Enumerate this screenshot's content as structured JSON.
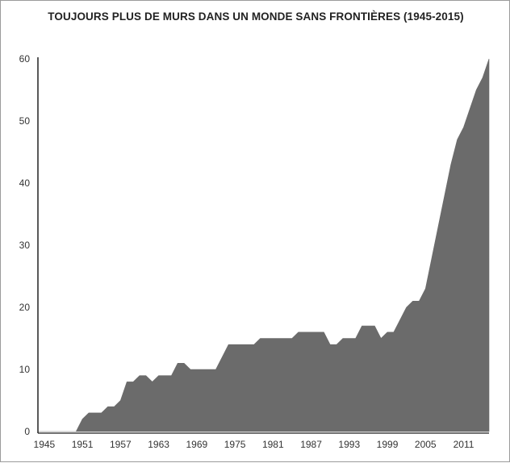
{
  "chart_data": {
    "type": "area",
    "title": "TOUJOURS PLUS DE MURS DANS UN MONDE SANS FRONTIÈRES (1945-2015)",
    "xlabel": "",
    "ylabel": "",
    "xlim": [
      1944,
      2015
    ],
    "ylim": [
      0,
      60
    ],
    "y_ticks": [
      0,
      10,
      20,
      30,
      40,
      50,
      60
    ],
    "x_ticks": [
      1945,
      1951,
      1957,
      1963,
      1969,
      1975,
      1981,
      1987,
      1993,
      1999,
      2005,
      2011
    ],
    "grid": false,
    "fill_color": "#6b6b6b",
    "series": [
      {
        "x": [
          1944,
          1945,
          1946,
          1947,
          1948,
          1949,
          1950,
          1951,
          1952,
          1953,
          1954,
          1955,
          1956,
          1957,
          1958,
          1959,
          1960,
          1961,
          1962,
          1963,
          1964,
          1965,
          1966,
          1967,
          1968,
          1969,
          1970,
          1971,
          1972,
          1973,
          1974,
          1975,
          1976,
          1977,
          1978,
          1979,
          1980,
          1981,
          1982,
          1983,
          1984,
          1985,
          1986,
          1987,
          1988,
          1989,
          1990,
          1991,
          1992,
          1993,
          1994,
          1995,
          1996,
          1997,
          1998,
          1999,
          2000,
          2001,
          2002,
          2003,
          2004,
          2005,
          2006,
          2007,
          2008,
          2009,
          2010,
          2011,
          2012,
          2013,
          2014,
          2015
        ],
        "values": [
          0,
          0,
          0,
          0,
          0,
          0,
          0,
          2,
          3,
          3,
          3,
          4,
          4,
          5,
          8,
          8,
          9,
          9,
          8,
          9,
          9,
          9,
          11,
          11,
          10,
          10,
          10,
          10,
          10,
          12,
          14,
          14,
          14,
          14,
          14,
          15,
          15,
          15,
          15,
          15,
          15,
          16,
          16,
          16,
          16,
          16,
          14,
          14,
          15,
          15,
          15,
          17,
          17,
          17,
          15,
          16,
          16,
          18,
          20,
          21,
          21,
          23,
          28,
          33,
          38,
          43,
          47,
          49,
          52,
          55,
          57,
          60
        ]
      }
    ]
  }
}
